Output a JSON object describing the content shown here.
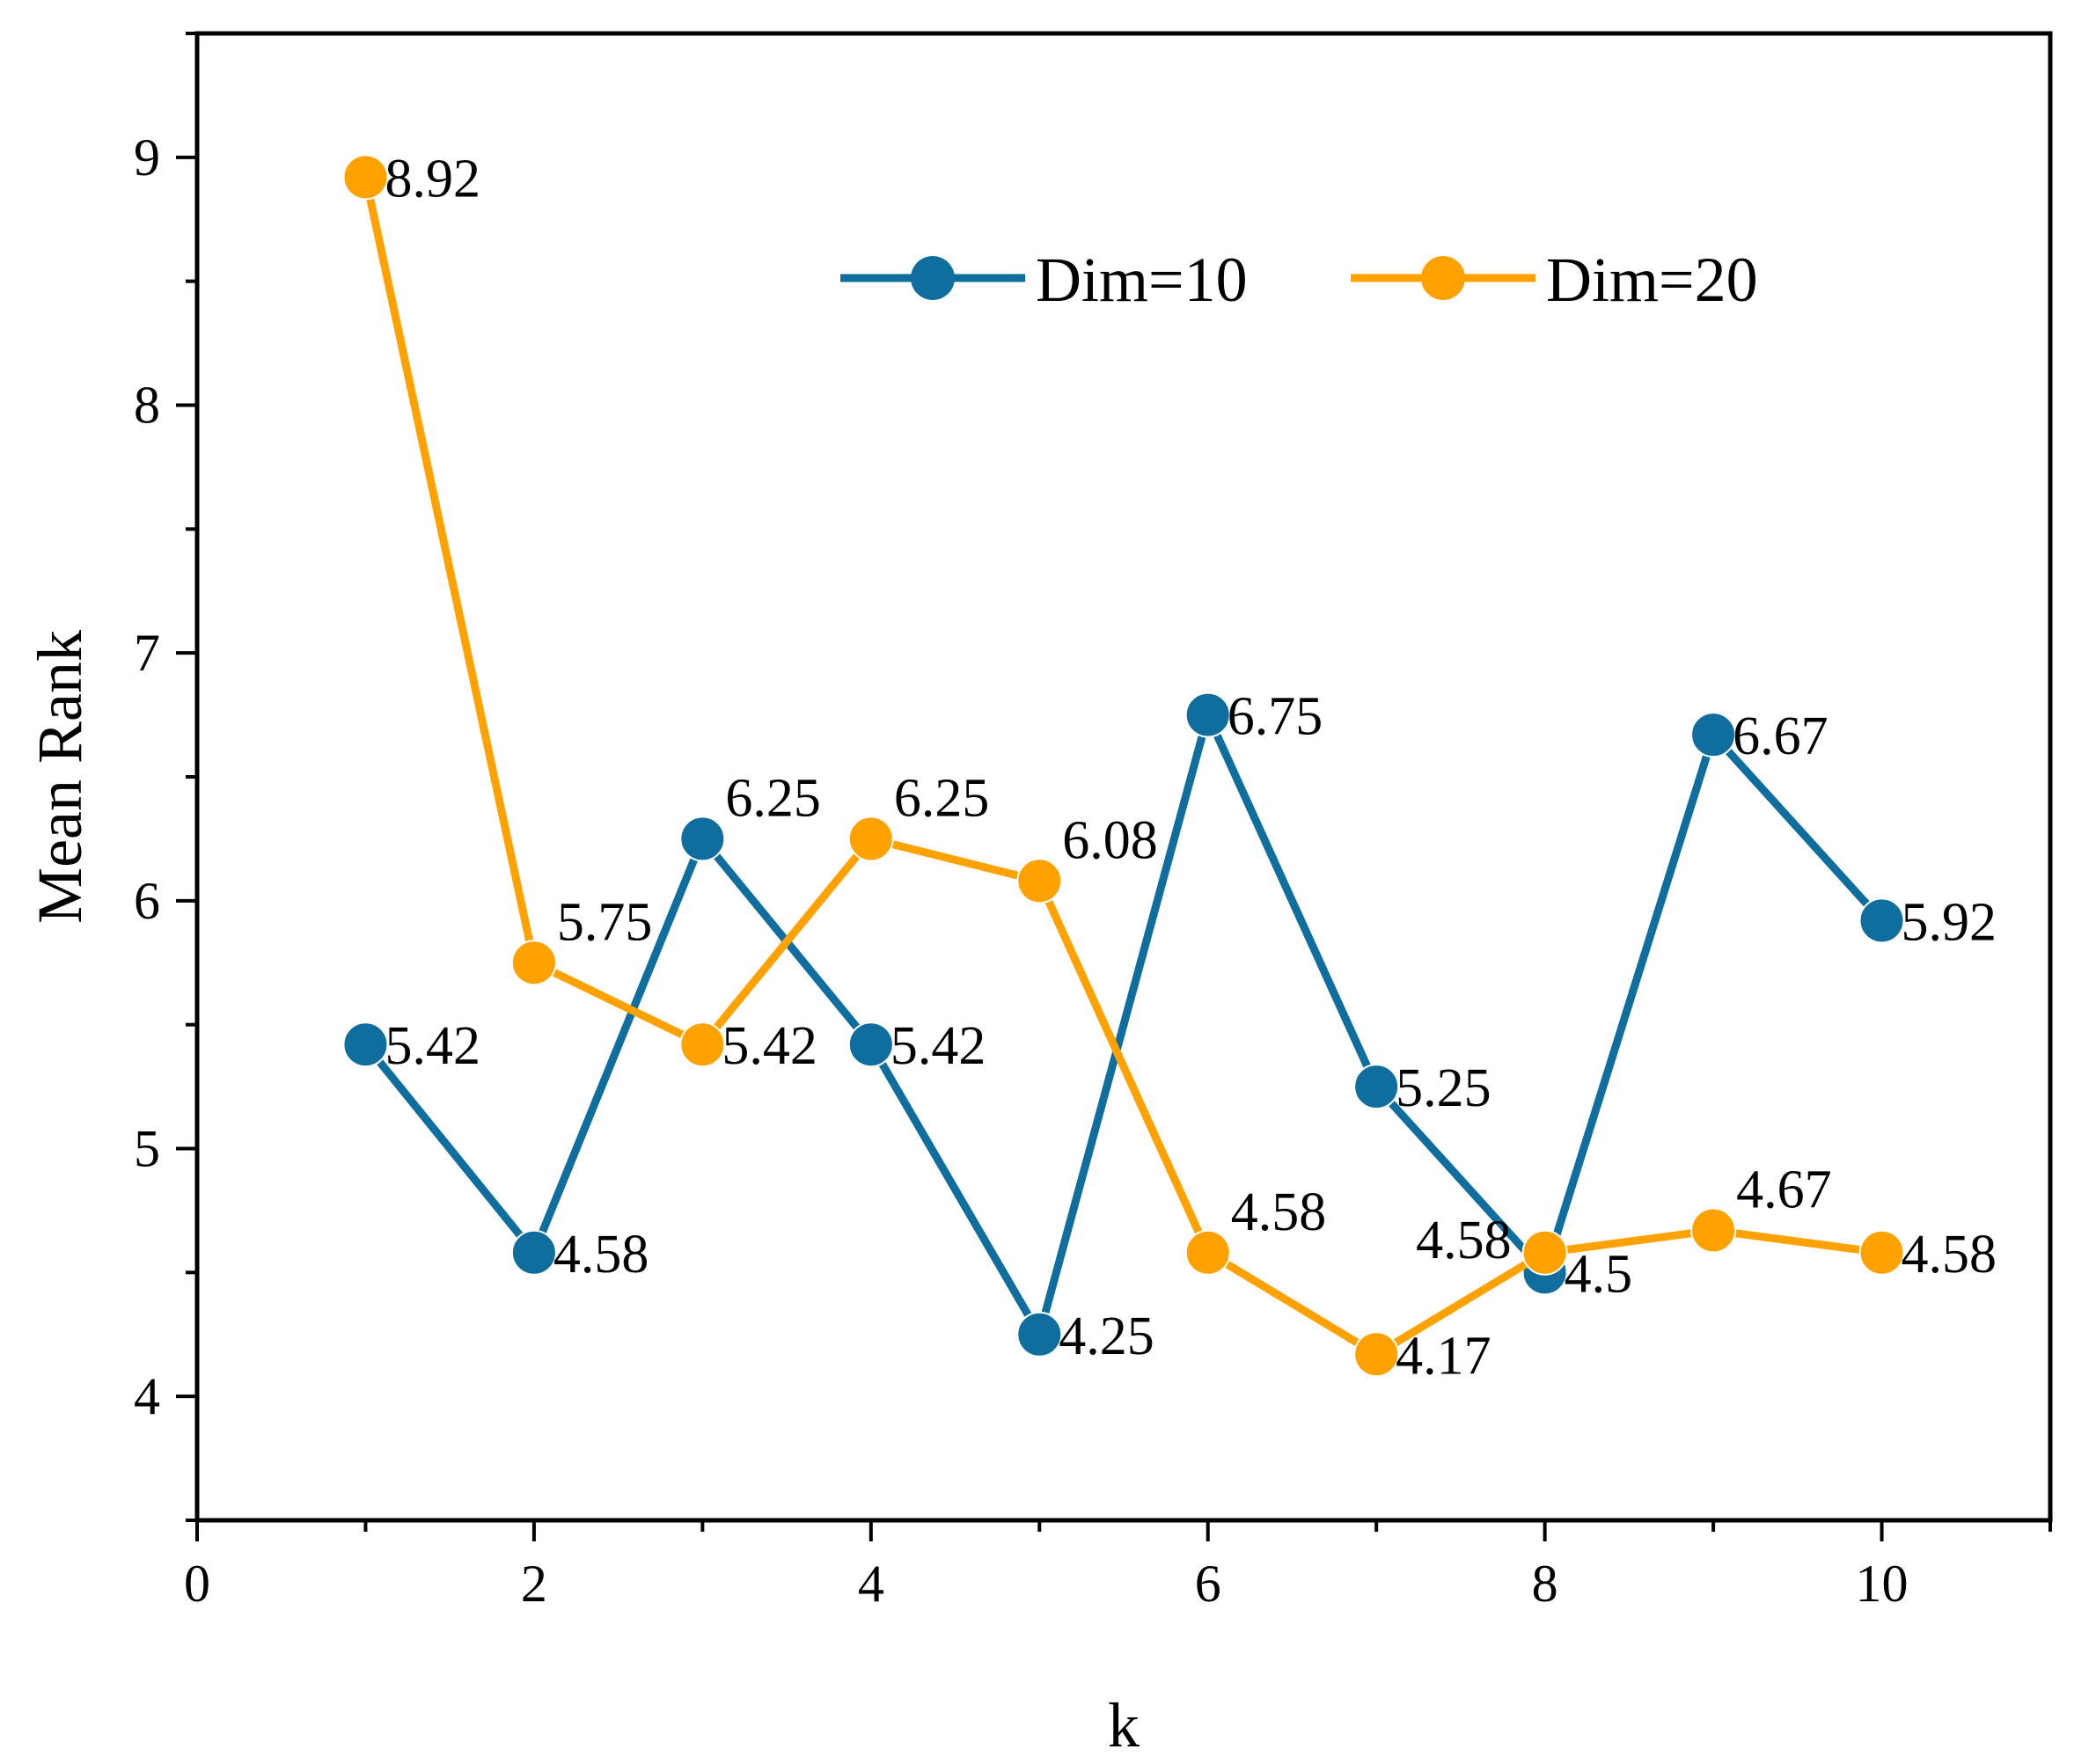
{
  "chart_data": {
    "type": "line",
    "title": "",
    "xlabel": "k",
    "ylabel": "Mean Rank",
    "xlim": [
      0,
      11
    ],
    "ylim": [
      3.5,
      9.5
    ],
    "xticks": [
      0,
      2,
      4,
      6,
      8,
      10
    ],
    "yticks": [
      4,
      5,
      6,
      7,
      8,
      9
    ],
    "xtick_labels": [
      "0",
      "2",
      "4",
      "6",
      "8",
      "10"
    ],
    "ytick_labels": [
      "4",
      "5",
      "6",
      "7",
      "8",
      "9"
    ],
    "grid": false,
    "legend_position": "top-right",
    "x": [
      1,
      2,
      3,
      4,
      5,
      6,
      7,
      8,
      9,
      10
    ],
    "series": [
      {
        "name": "Dim=10",
        "color": "#0f6e9e",
        "values": [
          5.42,
          4.58,
          6.25,
          5.42,
          4.25,
          6.75,
          5.25,
          4.5,
          6.67,
          5.92
        ],
        "labels": [
          "5.42",
          "4.58",
          "6.25",
          "5.42",
          "4.25",
          "6.75",
          "5.25",
          "4.5",
          "6.67",
          "5.92"
        ],
        "label_side": [
          "right",
          "right",
          "above",
          "right",
          "right",
          "right",
          "right",
          "right",
          "right",
          "right"
        ]
      },
      {
        "name": "Dim=20",
        "color": "#ffa200",
        "values": [
          8.92,
          5.75,
          5.42,
          6.25,
          6.08,
          4.58,
          4.17,
          4.58,
          4.67,
          4.58
        ],
        "labels": [
          "8.92",
          "5.75",
          "5.42",
          "6.25",
          "6.08",
          "4.58",
          "4.17",
          "4.58",
          "4.67",
          "4.58"
        ],
        "label_side": [
          "right",
          "above",
          "right",
          "above",
          "above",
          "above",
          "right",
          "left",
          "above",
          "right"
        ]
      }
    ]
  }
}
